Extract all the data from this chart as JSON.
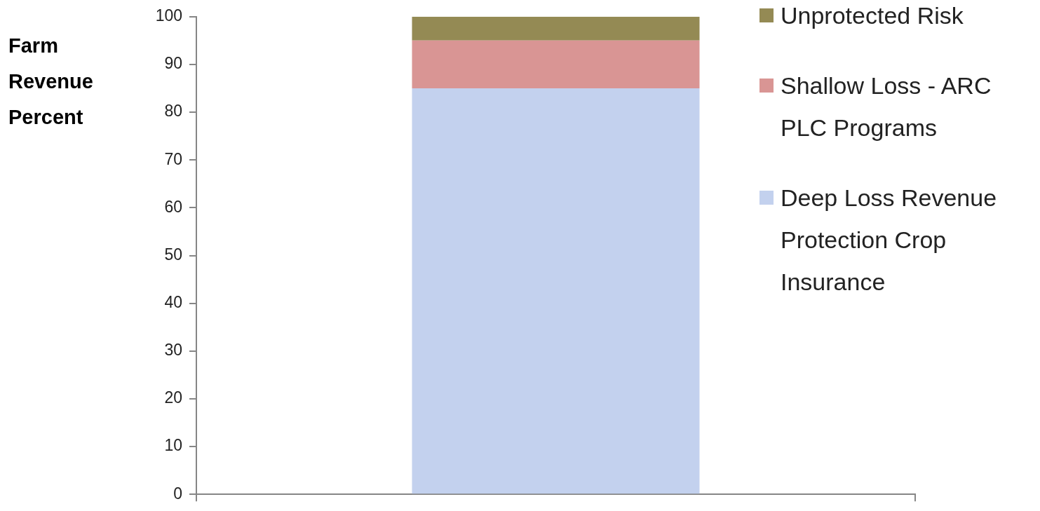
{
  "chart_data": {
    "type": "bar",
    "ylabel": "Farm Revenue Percent",
    "categories": [
      null
    ],
    "stacked": true,
    "series": [
      {
        "name": "Deep Loss Revenue Protection Crop Insurance",
        "color": "#c3d1ee",
        "values": [
          85
        ]
      },
      {
        "name": "Shallow Loss - ARC PLC Programs",
        "color": "#d99594",
        "values": [
          10
        ]
      },
      {
        "name": "Unprotected Risk",
        "color": "#948a54",
        "values": [
          5
        ]
      }
    ],
    "ylim": [
      0,
      100
    ],
    "yticks": [
      0,
      10,
      20,
      30,
      40,
      50,
      60,
      70,
      80,
      90,
      100
    ],
    "legend": "top right"
  }
}
